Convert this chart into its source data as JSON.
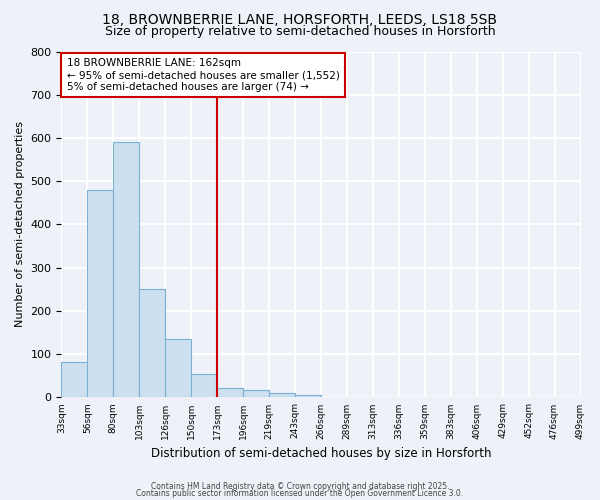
{
  "title1": "18, BROWNBERRIE LANE, HORSFORTH, LEEDS, LS18 5SB",
  "title2": "Size of property relative to semi-detached houses in Horsforth",
  "xlabel": "Distribution of semi-detached houses by size in Horsforth",
  "ylabel": "Number of semi-detached properties",
  "bar_values": [
    82,
    480,
    590,
    250,
    135,
    55,
    22,
    17,
    10,
    5,
    2,
    0,
    0,
    0,
    0,
    0,
    0,
    0,
    0,
    0
  ],
  "categories": [
    "33sqm",
    "56sqm",
    "80sqm",
    "103sqm",
    "126sqm",
    "150sqm",
    "173sqm",
    "196sqm",
    "219sqm",
    "243sqm",
    "266sqm",
    "289sqm",
    "313sqm",
    "336sqm",
    "359sqm",
    "383sqm",
    "406sqm",
    "429sqm",
    "452sqm",
    "476sqm",
    "499sqm"
  ],
  "bar_color": "#cce0f0",
  "bar_edge_color": "#7ab0d4",
  "vline_color": "#cc0000",
  "annotation_text": "18 BROWNBERRIE LANE: 162sqm\n← 95% of semi-detached houses are smaller (1,552)\n5% of semi-detached houses are larger (74) →",
  "annotation_box_facecolor": "white",
  "annotation_box_edgecolor": "#cc0000",
  "ylim": [
    0,
    800
  ],
  "yticks": [
    0,
    100,
    200,
    300,
    400,
    500,
    600,
    700,
    800
  ],
  "footer_line1": "Contains HM Land Registry data © Crown copyright and database right 2025.",
  "footer_line2": "Contains public sector information licensed under the Open Government Licence 3.0.",
  "bg_color": "#eef2f8",
  "plot_bg_color": "#eef2f8",
  "grid_color": "white",
  "title1_fontsize": 10,
  "title2_fontsize": 9,
  "vline_at_bin": 6
}
